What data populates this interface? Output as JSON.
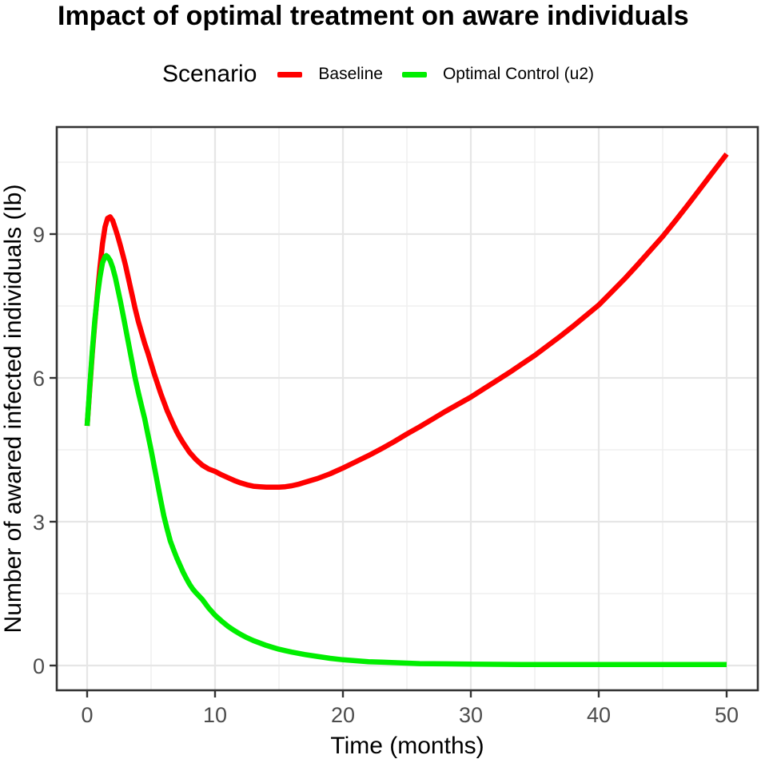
{
  "title": "Impact of optimal treatment on aware individuals",
  "legend": {
    "title": "Scenario",
    "items": [
      {
        "label": "Baseline",
        "color": "#FF0000"
      },
      {
        "label": "Optimal Control (u2)",
        "color": "#00EE00"
      }
    ]
  },
  "chart_data": {
    "type": "line",
    "title": "Impact of optimal treatment on aware individuals",
    "xlabel": "Time (months)",
    "ylabel": "Number of awared infected individuals (Ib)",
    "xlim": [
      -2.4,
      52.4
    ],
    "ylim": [
      -0.52,
      11.23
    ],
    "x_ticks": [
      0,
      10,
      20,
      30,
      40,
      50
    ],
    "x_tick_labels": [
      "0",
      "10",
      "20",
      "30",
      "40",
      "50"
    ],
    "y_ticks": [
      0,
      3,
      6,
      9
    ],
    "y_tick_labels": [
      "0",
      "3",
      "6",
      "9"
    ],
    "x_minor_gridlines": [
      5,
      15,
      25,
      35,
      45
    ],
    "y_minor_gridlines": [
      1.5,
      4.5,
      7.5,
      10.5
    ],
    "grid": true,
    "legend_position": "top",
    "legend_title": "Scenario",
    "series": [
      {
        "name": "Baseline",
        "color": "#FF0000",
        "points": [
          [
            0,
            5.0
          ],
          [
            0.2,
            5.75
          ],
          [
            0.4,
            6.5
          ],
          [
            0.6,
            7.15
          ],
          [
            0.8,
            7.75
          ],
          [
            1,
            8.3
          ],
          [
            1.2,
            8.8
          ],
          [
            1.4,
            9.15
          ],
          [
            1.6,
            9.33
          ],
          [
            1.8,
            9.36
          ],
          [
            2,
            9.28
          ],
          [
            2.2,
            9.12
          ],
          [
            2.4,
            8.95
          ],
          [
            2.6,
            8.76
          ],
          [
            2.8,
            8.56
          ],
          [
            3,
            8.35
          ],
          [
            3.25,
            8.05
          ],
          [
            3.5,
            7.75
          ],
          [
            3.75,
            7.45
          ],
          [
            4,
            7.18
          ],
          [
            4.25,
            6.95
          ],
          [
            4.5,
            6.72
          ],
          [
            4.75,
            6.52
          ],
          [
            5,
            6.3
          ],
          [
            5.25,
            6.08
          ],
          [
            5.5,
            5.88
          ],
          [
            5.75,
            5.68
          ],
          [
            6,
            5.5
          ],
          [
            6.25,
            5.32
          ],
          [
            6.5,
            5.17
          ],
          [
            6.75,
            5.02
          ],
          [
            7,
            4.88
          ],
          [
            7.25,
            4.76
          ],
          [
            7.5,
            4.65
          ],
          [
            7.75,
            4.55
          ],
          [
            8,
            4.45
          ],
          [
            8.5,
            4.3
          ],
          [
            9,
            4.18
          ],
          [
            9.5,
            4.1
          ],
          [
            10,
            4.05
          ],
          [
            10.5,
            3.98
          ],
          [
            11,
            3.92
          ],
          [
            11.5,
            3.86
          ],
          [
            12,
            3.81
          ],
          [
            12.5,
            3.77
          ],
          [
            13,
            3.74
          ],
          [
            13.5,
            3.73
          ],
          [
            14,
            3.72
          ],
          [
            14.5,
            3.72
          ],
          [
            15,
            3.72
          ],
          [
            15.5,
            3.73
          ],
          [
            16,
            3.75
          ],
          [
            16.5,
            3.78
          ],
          [
            17,
            3.82
          ],
          [
            17.5,
            3.86
          ],
          [
            18,
            3.9
          ],
          [
            18.5,
            3.95
          ],
          [
            19,
            4.0
          ],
          [
            19.5,
            4.06
          ],
          [
            20,
            4.12
          ],
          [
            21,
            4.25
          ],
          [
            22,
            4.38
          ],
          [
            23,
            4.52
          ],
          [
            24,
            4.67
          ],
          [
            25,
            4.83
          ],
          [
            26,
            4.98
          ],
          [
            27,
            5.14
          ],
          [
            28,
            5.3
          ],
          [
            29,
            5.45
          ],
          [
            30,
            5.6
          ],
          [
            31,
            5.77
          ],
          [
            32,
            5.94
          ],
          [
            33,
            6.11
          ],
          [
            34,
            6.29
          ],
          [
            35,
            6.47
          ],
          [
            36,
            6.67
          ],
          [
            37,
            6.87
          ],
          [
            38,
            7.08
          ],
          [
            39,
            7.3
          ],
          [
            40,
            7.52
          ],
          [
            41,
            7.79
          ],
          [
            42,
            8.06
          ],
          [
            43,
            8.35
          ],
          [
            44,
            8.65
          ],
          [
            45,
            8.95
          ],
          [
            46,
            9.28
          ],
          [
            47,
            9.62
          ],
          [
            48,
            9.97
          ],
          [
            49,
            10.32
          ],
          [
            50,
            10.67
          ]
        ]
      },
      {
        "name": "Optimal Control (u2)",
        "color": "#00EE00",
        "points": [
          [
            0,
            5.0
          ],
          [
            0.2,
            5.8
          ],
          [
            0.4,
            6.55
          ],
          [
            0.6,
            7.2
          ],
          [
            0.8,
            7.7
          ],
          [
            1,
            8.1
          ],
          [
            1.2,
            8.4
          ],
          [
            1.4,
            8.53
          ],
          [
            1.5,
            8.55
          ],
          [
            1.6,
            8.53
          ],
          [
            1.8,
            8.45
          ],
          [
            2,
            8.3
          ],
          [
            2.2,
            8.1
          ],
          [
            2.4,
            7.85
          ],
          [
            2.6,
            7.6
          ],
          [
            2.8,
            7.33
          ],
          [
            3,
            7.05
          ],
          [
            3.25,
            6.7
          ],
          [
            3.5,
            6.35
          ],
          [
            3.75,
            6.0
          ],
          [
            4,
            5.7
          ],
          [
            4.25,
            5.42
          ],
          [
            4.5,
            5.15
          ],
          [
            4.75,
            4.82
          ],
          [
            5,
            4.5
          ],
          [
            5.25,
            4.15
          ],
          [
            5.5,
            3.8
          ],
          [
            5.75,
            3.45
          ],
          [
            6,
            3.12
          ],
          [
            6.25,
            2.85
          ],
          [
            6.5,
            2.6
          ],
          [
            6.75,
            2.42
          ],
          [
            7,
            2.25
          ],
          [
            7.25,
            2.1
          ],
          [
            7.5,
            1.95
          ],
          [
            7.75,
            1.82
          ],
          [
            8,
            1.7
          ],
          [
            8.25,
            1.6
          ],
          [
            8.5,
            1.52
          ],
          [
            8.75,
            1.45
          ],
          [
            9,
            1.38
          ],
          [
            9.5,
            1.2
          ],
          [
            10,
            1.05
          ],
          [
            10.5,
            0.93
          ],
          [
            11,
            0.82
          ],
          [
            11.5,
            0.73
          ],
          [
            12,
            0.65
          ],
          [
            12.5,
            0.58
          ],
          [
            13,
            0.52
          ],
          [
            13.5,
            0.47
          ],
          [
            14,
            0.42
          ],
          [
            14.5,
            0.38
          ],
          [
            15,
            0.34
          ],
          [
            15.5,
            0.31
          ],
          [
            16,
            0.28
          ],
          [
            17,
            0.23
          ],
          [
            18,
            0.19
          ],
          [
            19,
            0.15
          ],
          [
            20,
            0.12
          ],
          [
            21,
            0.1
          ],
          [
            22,
            0.08
          ],
          [
            23,
            0.07
          ],
          [
            24,
            0.06
          ],
          [
            25,
            0.05
          ],
          [
            26,
            0.04
          ],
          [
            28,
            0.035
          ],
          [
            30,
            0.03
          ],
          [
            32,
            0.025
          ],
          [
            34,
            0.02
          ],
          [
            36,
            0.02
          ],
          [
            38,
            0.02
          ],
          [
            40,
            0.02
          ],
          [
            42,
            0.02
          ],
          [
            44,
            0.02
          ],
          [
            46,
            0.02
          ],
          [
            48,
            0.02
          ],
          [
            50,
            0.02
          ]
        ]
      }
    ]
  },
  "style": {
    "grid_major_color": "#E6E6E6",
    "grid_minor_color": "#EFEFEF",
    "panel_border_color": "#333333",
    "tick_color": "#333333",
    "tick_label_color": "#4d4d4d",
    "axis_title_color": "#000000"
  }
}
